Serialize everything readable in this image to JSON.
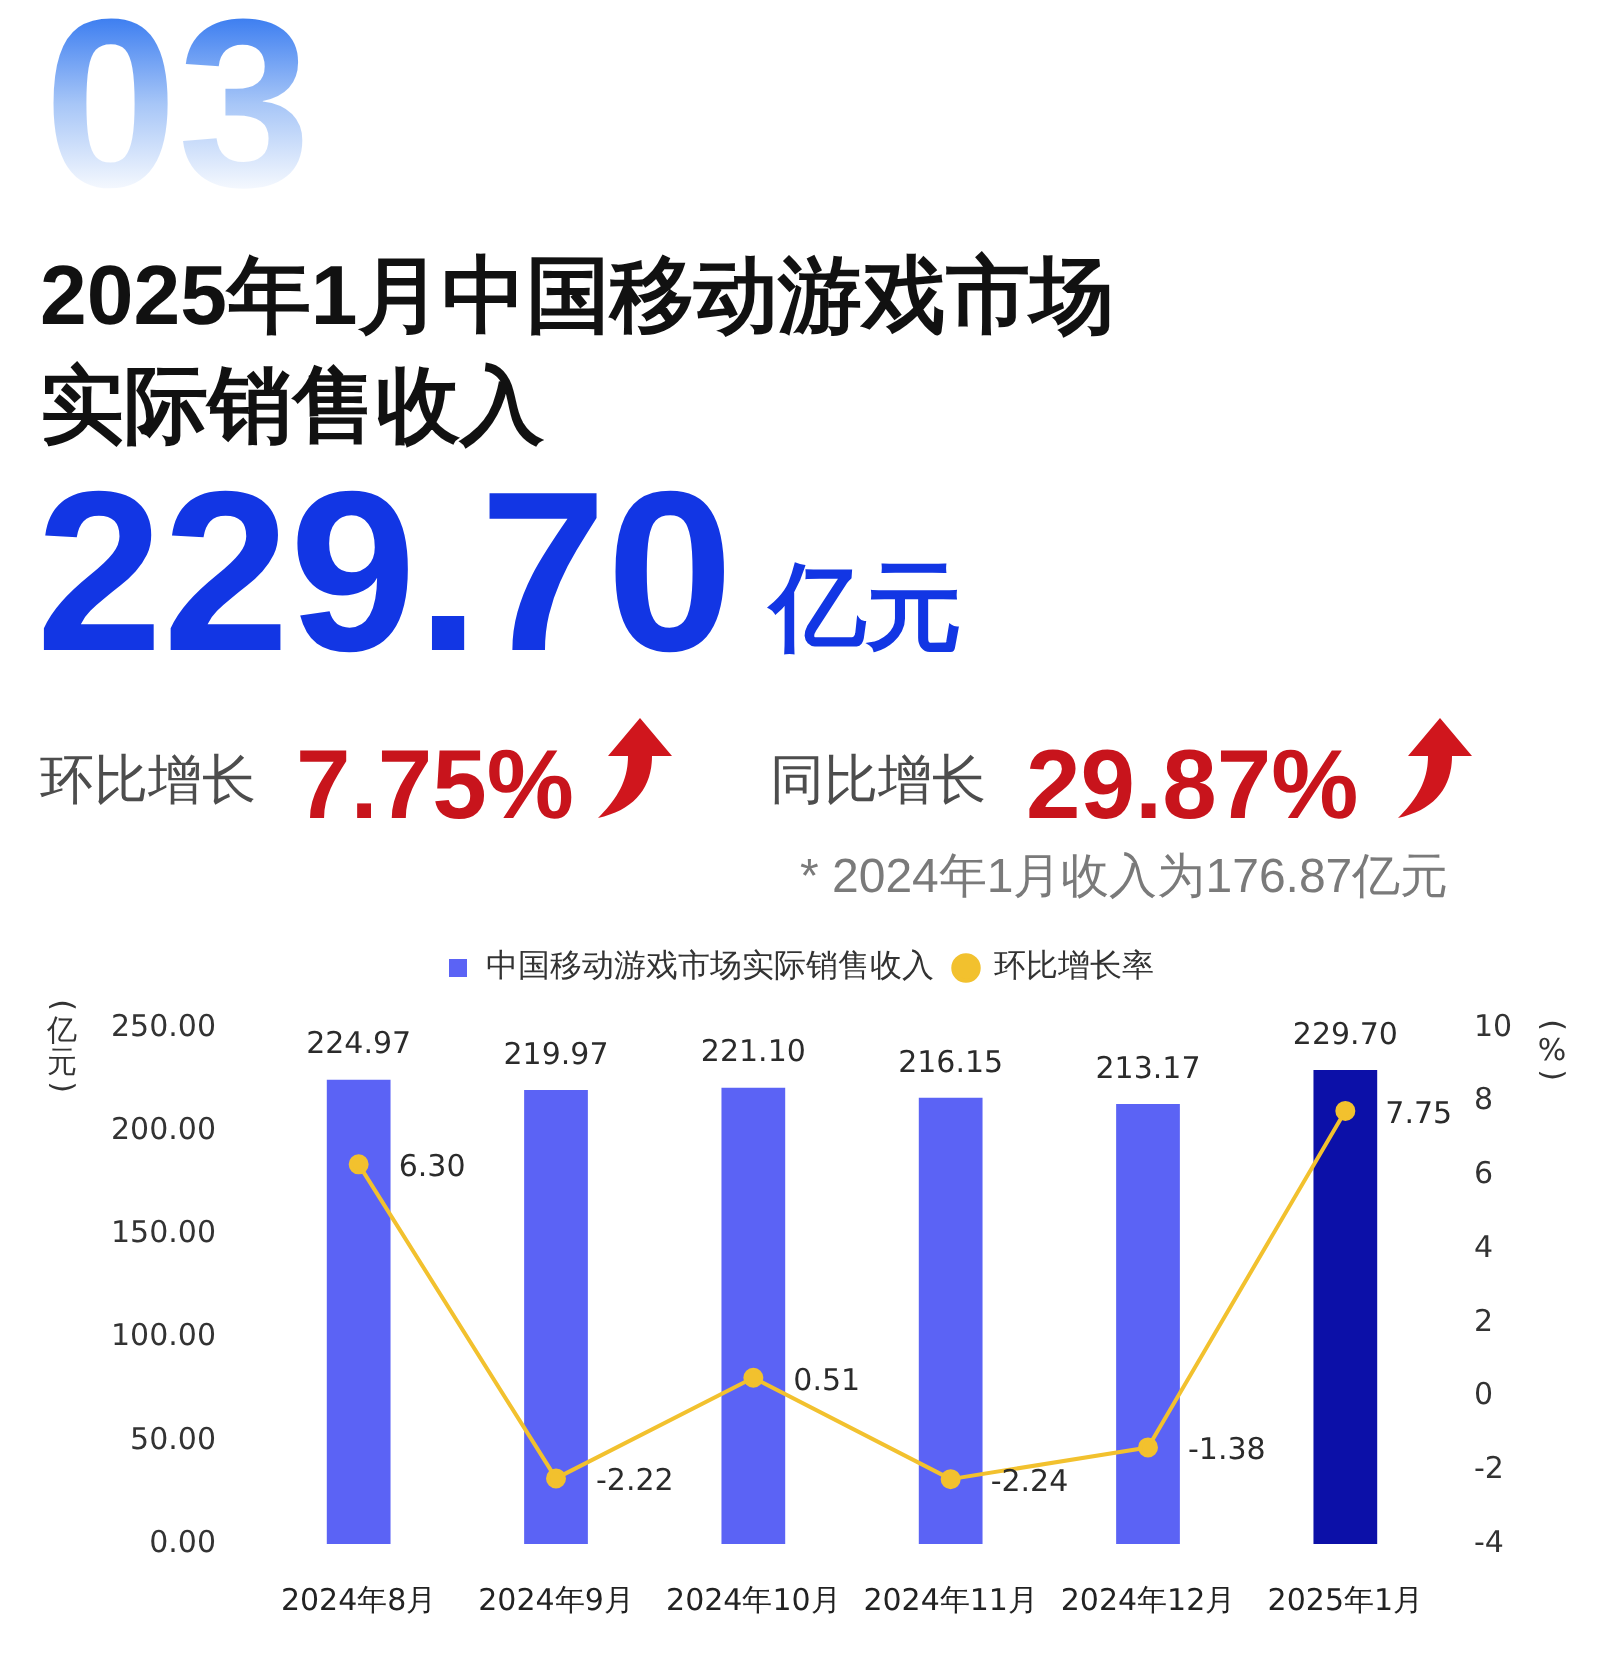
{
  "chart_data": {
    "type": "bar",
    "title": "2025年1月中国移动游戏市场实际销售收入",
    "ylabel": "(亿元)",
    "y2label": "(%)",
    "annotations": [
      "03",
      "229.70",
      "亿元",
      "环比增长",
      "7.75%",
      "同比增长",
      "29.87%",
      "* 2024年1月收入为176.87亿元"
    ],
    "categories": [
      "2024年8月",
      "2024年9月",
      "2024年10月",
      "2024年11月",
      "2024年12月",
      "2025年1月"
    ],
    "series": [
      {
        "name": "中国移动游戏市场实际销售收入",
        "colors": [
          "#5b63f5",
          "#5b63f5",
          "#5b63f5",
          "#5b63f5",
          "#5b63f5",
          "#0c10a8"
        ],
        "values": [
          224.97,
          219.97,
          221.1,
          216.15,
          213.17,
          229.7
        ],
        "value_labels": [
          "224.97",
          "219.97",
          "221.10",
          "216.15",
          "213.17",
          "229.70"
        ]
      },
      {
        "name": "环比增长率",
        "type": "line",
        "axis": "y2",
        "color": "#f2c12e",
        "values": [
          6.3,
          -2.22,
          0.51,
          -2.24,
          -1.38,
          7.75
        ],
        "value_labels": [
          "6.30",
          "-2.22",
          "0.51",
          "-2.24",
          "-1.38",
          "7.75"
        ]
      }
    ],
    "ylim": [
      0,
      250
    ],
    "yticks": [
      {
        "value": 0,
        "label": "0.00"
      },
      {
        "value": 50,
        "label": "50.00"
      },
      {
        "value": 100,
        "label": "100.00"
      },
      {
        "value": 150,
        "label": "150.00"
      },
      {
        "value": 200,
        "label": "200.00"
      },
      {
        "value": 250,
        "label": "250.00"
      }
    ],
    "y2lim": [
      -4,
      10
    ],
    "y2ticks": [
      -4,
      -2,
      0,
      2,
      4,
      6,
      8,
      10
    ],
    "legend": "top",
    "grid": false,
    "marker": "circle"
  }
}
